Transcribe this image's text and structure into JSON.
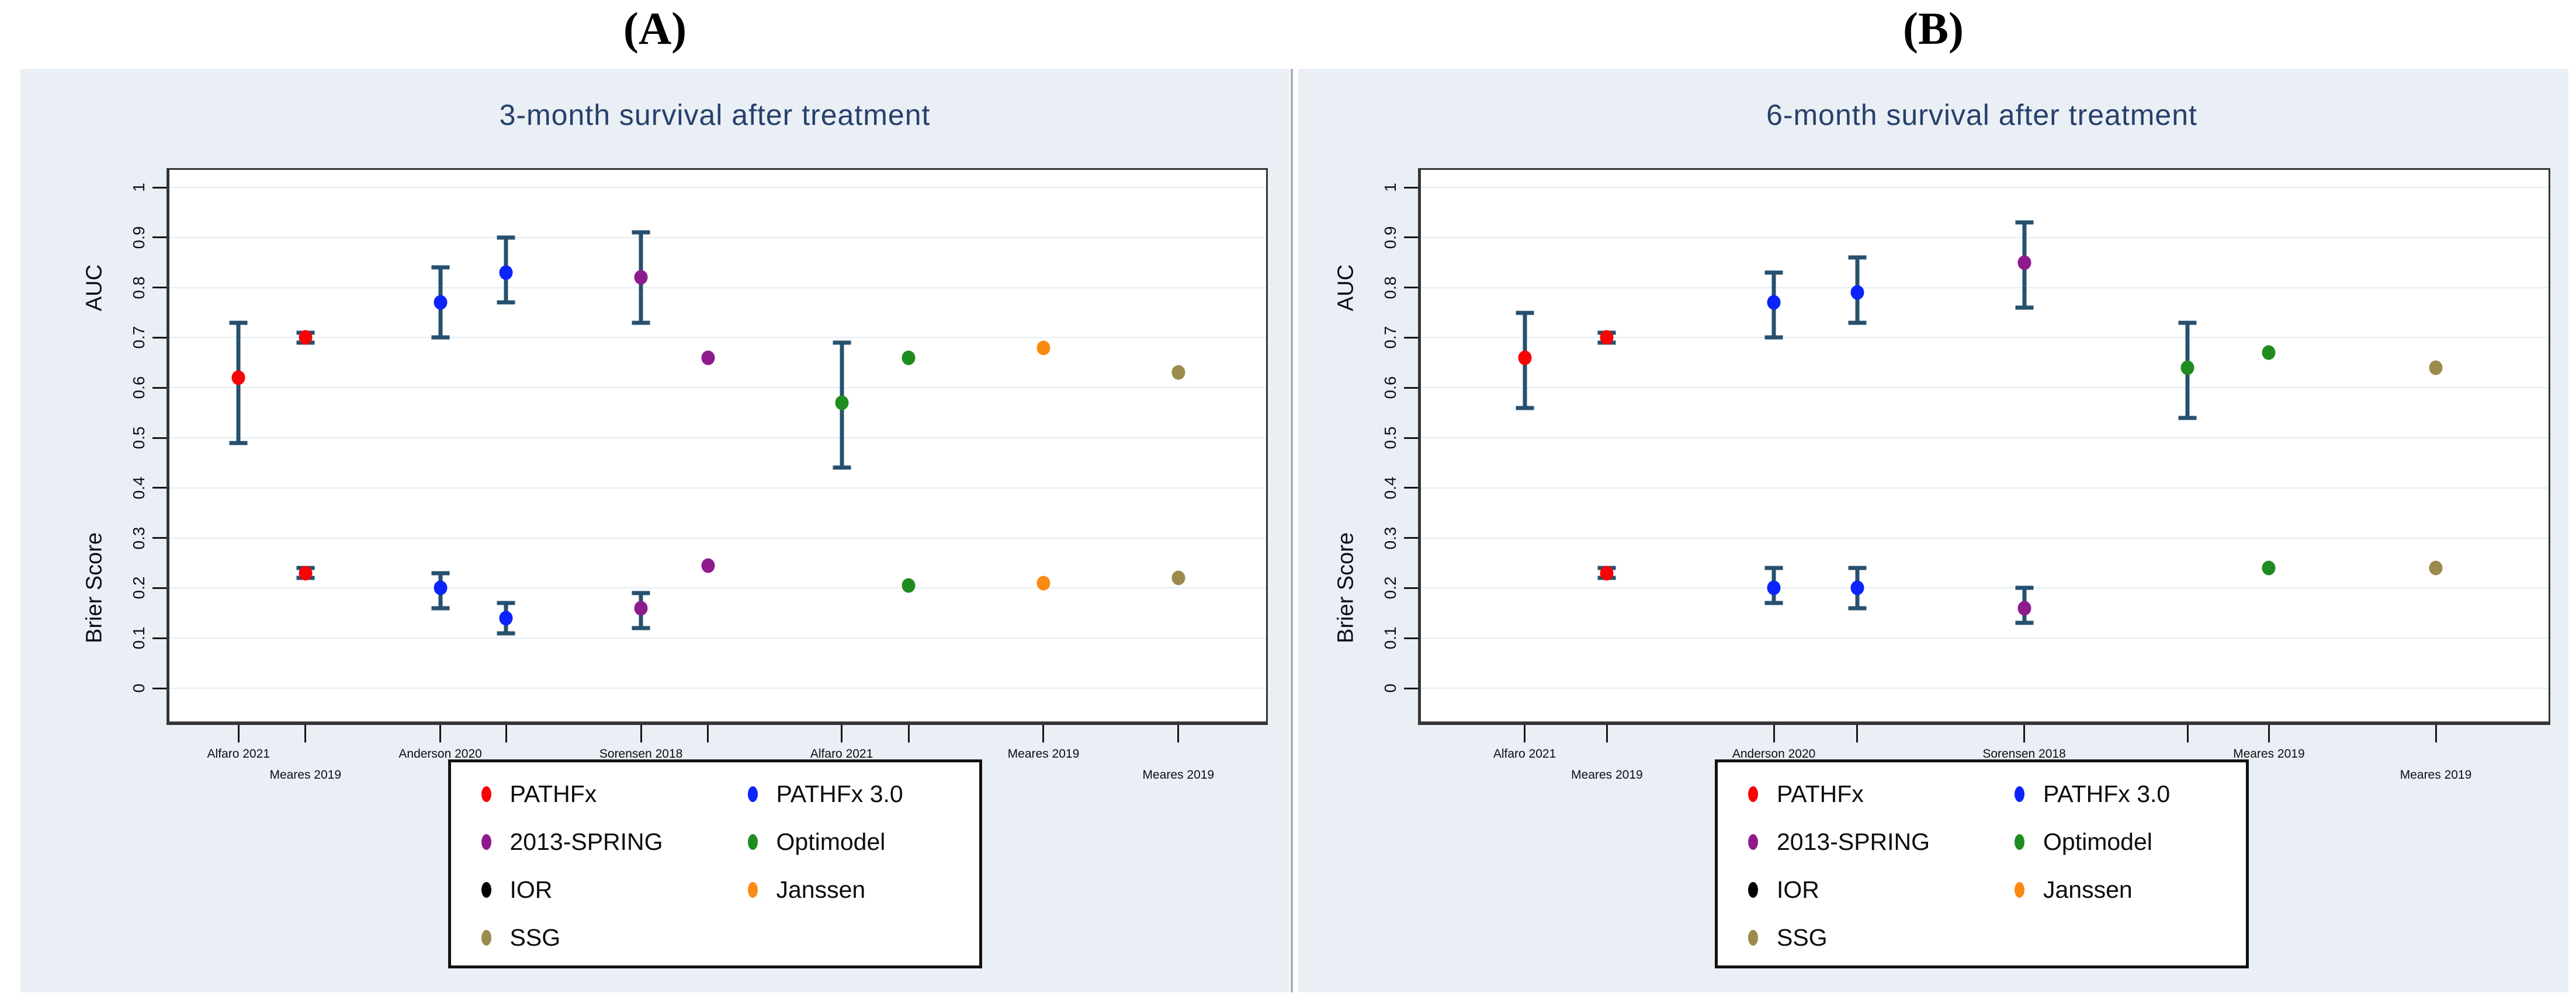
{
  "figure_labels": {
    "panel_a": "(A)",
    "panel_b": "(B)"
  },
  "colors": {
    "red": "#F50505",
    "blue": "#0B24FB",
    "purple": "#8E1B8E",
    "green": "#1E8C1E",
    "orange": "#FB8A12",
    "tan": "#9C8B4D",
    "black": "#000000",
    "error_bar": "#27506F",
    "title": "#27406B",
    "panel_background": "#E9EFF4",
    "gridline": "#E3EDF2"
  },
  "legend": {
    "items": [
      {
        "label": "PATHFx",
        "color": "red"
      },
      {
        "label": "PATHFx 3.0",
        "color": "blue"
      },
      {
        "label": "2013-SPRING",
        "color": "purple"
      },
      {
        "label": "Optimodel",
        "color": "green"
      },
      {
        "label": "IOR",
        "color": "black"
      },
      {
        "label": "Janssen",
        "color": "orange"
      },
      {
        "label": "SSG",
        "color": "tan"
      }
    ]
  },
  "chart_data": [
    {
      "type": "scatter",
      "panel": "A",
      "title": "3-month survival after treatment",
      "ylabel_top": {
        "text": "AUC",
        "center_value": 0.8
      },
      "ylabel_bottom": {
        "text": "Brier Score",
        "center_value": 0.2
      },
      "ylim": [
        0,
        1
      ],
      "grid": true,
      "legend_position": "bottom-center",
      "yticks": [
        {
          "v": 0,
          "label": "0"
        },
        {
          "v": 0.1,
          "label": "0.1"
        },
        {
          "v": 0.2,
          "label": "0.2"
        },
        {
          "v": 0.3,
          "label": "0.3"
        },
        {
          "v": 0.4,
          "label": "0.4"
        },
        {
          "v": 0.5,
          "label": "0.5"
        },
        {
          "v": 0.6,
          "label": "0.6"
        },
        {
          "v": 0.7,
          "label": "0.7"
        },
        {
          "v": 0.8,
          "label": "0.8"
        },
        {
          "v": 0.9,
          "label": "0.9"
        },
        {
          "v": 1,
          "label": "1"
        }
      ],
      "x_axis": {
        "ticks": [
          {
            "pos": 0.063,
            "label": "Alfaro 2021",
            "row": 1
          },
          {
            "pos": 0.124,
            "label": "Meares 2019",
            "row": 2
          },
          {
            "pos": 0.247,
            "label": "Anderson 2020",
            "row": 1
          },
          {
            "pos": 0.307,
            "label": "Anderson 2020",
            "row": 2
          },
          {
            "pos": 0.43,
            "label": "Sorensen 2018",
            "row": 1
          },
          {
            "pos": 0.491,
            "label": "Meares 2019",
            "row": 2
          },
          {
            "pos": 0.613,
            "label": "Alfaro 2021",
            "row": 1
          },
          {
            "pos": 0.674,
            "label": "Meares 2019",
            "row": 2
          },
          {
            "pos": 0.797,
            "label": "Meares 2019",
            "row": 1
          },
          {
            "pos": 0.92,
            "label": "Meares 2019",
            "row": 2
          }
        ]
      },
      "series": [
        {
          "name": "PATHFx",
          "color": "red",
          "points": [
            {
              "x": 0.063,
              "metric": "AUC",
              "study": "Alfaro 2021",
              "value": 0.62,
              "ci": [
                0.49,
                0.73
              ]
            },
            {
              "x": 0.124,
              "metric": "AUC",
              "study": "Meares 2019",
              "value": 0.7,
              "ci": [
                0.69,
                0.71
              ]
            },
            {
              "x": 0.124,
              "metric": "Brier Score",
              "study": "Meares 2019",
              "value": 0.23,
              "ci": [
                0.22,
                0.24
              ]
            }
          ]
        },
        {
          "name": "PATHFx 3.0",
          "color": "blue",
          "points": [
            {
              "x": 0.247,
              "metric": "AUC",
              "study": "Anderson 2020",
              "value": 0.77,
              "ci": [
                0.7,
                0.84
              ]
            },
            {
              "x": 0.307,
              "metric": "AUC",
              "study": "Anderson 2020",
              "value": 0.83,
              "ci": [
                0.77,
                0.9
              ]
            },
            {
              "x": 0.247,
              "metric": "Brier Score",
              "study": "Anderson 2020",
              "value": 0.2,
              "ci": [
                0.16,
                0.23
              ]
            },
            {
              "x": 0.307,
              "metric": "Brier Score",
              "study": "Anderson 2020",
              "value": 0.14,
              "ci": [
                0.11,
                0.17
              ]
            }
          ]
        },
        {
          "name": "2013-SPRING",
          "color": "purple",
          "points": [
            {
              "x": 0.43,
              "metric": "AUC",
              "study": "Sorensen 2018",
              "value": 0.82,
              "ci": [
                0.73,
                0.91
              ]
            },
            {
              "x": 0.491,
              "metric": "AUC",
              "study": "Meares 2019",
              "value": 0.66,
              "ci": null
            },
            {
              "x": 0.43,
              "metric": "Brier Score",
              "study": "Sorensen 2018",
              "value": 0.16,
              "ci": [
                0.12,
                0.19
              ]
            },
            {
              "x": 0.491,
              "metric": "Brier Score",
              "study": "Meares 2019",
              "value": 0.245,
              "ci": null
            }
          ]
        },
        {
          "name": "Optimodel",
          "color": "green",
          "points": [
            {
              "x": 0.613,
              "metric": "AUC",
              "study": "Alfaro 2021",
              "value": 0.57,
              "ci": [
                0.44,
                0.69
              ]
            },
            {
              "x": 0.674,
              "metric": "AUC",
              "study": "Meares 2019",
              "value": 0.66,
              "ci": null
            },
            {
              "x": 0.674,
              "metric": "Brier Score",
              "study": "Meares 2019",
              "value": 0.205,
              "ci": null
            }
          ]
        },
        {
          "name": "Janssen",
          "color": "orange",
          "points": [
            {
              "x": 0.797,
              "metric": "AUC",
              "study": "Meares 2019",
              "value": 0.68,
              "ci": null
            },
            {
              "x": 0.797,
              "metric": "Brier Score",
              "study": "Meares 2019",
              "value": 0.21,
              "ci": null
            }
          ]
        },
        {
          "name": "SSG",
          "color": "tan",
          "points": [
            {
              "x": 0.92,
              "metric": "AUC",
              "study": "Meares 2019",
              "value": 0.63,
              "ci": null
            },
            {
              "x": 0.92,
              "metric": "Brier Score",
              "study": "Meares 2019",
              "value": 0.22,
              "ci": null
            }
          ]
        }
      ]
    },
    {
      "type": "scatter",
      "panel": "B",
      "title": "6-month survival after treatment",
      "ylabel_top": {
        "text": "AUC",
        "center_value": 0.8
      },
      "ylabel_bottom": {
        "text": "Brier Score",
        "center_value": 0.2
      },
      "ylim": [
        0,
        1
      ],
      "grid": true,
      "legend_position": "bottom-center",
      "yticks": [
        {
          "v": 0,
          "label": "0"
        },
        {
          "v": 0.1,
          "label": "0.1"
        },
        {
          "v": 0.2,
          "label": "0.2"
        },
        {
          "v": 0.3,
          "label": "0.3"
        },
        {
          "v": 0.4,
          "label": "0.4"
        },
        {
          "v": 0.5,
          "label": "0.5"
        },
        {
          "v": 0.6,
          "label": "0.6"
        },
        {
          "v": 0.7,
          "label": "0.7"
        },
        {
          "v": 0.8,
          "label": "0.8"
        },
        {
          "v": 0.9,
          "label": "0.9"
        },
        {
          "v": 1,
          "label": "1"
        }
      ],
      "x_axis": {
        "ticks": [
          {
            "pos": 0.092,
            "label": "Alfaro 2021",
            "row": 1
          },
          {
            "pos": 0.165,
            "label": "Meares 2019",
            "row": 2
          },
          {
            "pos": 0.313,
            "label": "Anderson 2020",
            "row": 1
          },
          {
            "pos": 0.387,
            "label": "Anderson 2020",
            "row": 2
          },
          {
            "pos": 0.535,
            "label": "Sorensen 2018",
            "row": 1
          },
          {
            "pos": 0.68,
            "label": "Alfaro 2021",
            "row": 2
          },
          {
            "pos": 0.752,
            "label": "Meares 2019",
            "row": 1
          },
          {
            "pos": 0.9,
            "label": "Meares 2019",
            "row": 2
          }
        ]
      },
      "series": [
        {
          "name": "PATHFx",
          "color": "red",
          "points": [
            {
              "x": 0.092,
              "metric": "AUC",
              "study": "Alfaro 2021",
              "value": 0.66,
              "ci": [
                0.56,
                0.75
              ]
            },
            {
              "x": 0.165,
              "metric": "AUC",
              "study": "Meares 2019",
              "value": 0.7,
              "ci": [
                0.69,
                0.71
              ]
            },
            {
              "x": 0.165,
              "metric": "Brier Score",
              "study": "Meares 2019",
              "value": 0.23,
              "ci": [
                0.22,
                0.24
              ]
            }
          ]
        },
        {
          "name": "PATHFx 3.0",
          "color": "blue",
          "points": [
            {
              "x": 0.313,
              "metric": "AUC",
              "study": "Anderson 2020",
              "value": 0.77,
              "ci": [
                0.7,
                0.83
              ]
            },
            {
              "x": 0.387,
              "metric": "AUC",
              "study": "Anderson 2020",
              "value": 0.79,
              "ci": [
                0.73,
                0.86
              ]
            },
            {
              "x": 0.313,
              "metric": "Brier Score",
              "study": "Anderson 2020",
              "value": 0.2,
              "ci": [
                0.17,
                0.24
              ]
            },
            {
              "x": 0.387,
              "metric": "Brier Score",
              "study": "Anderson 2020",
              "value": 0.2,
              "ci": [
                0.16,
                0.24
              ]
            }
          ]
        },
        {
          "name": "2013-SPRING",
          "color": "purple",
          "points": [
            {
              "x": 0.535,
              "metric": "AUC",
              "study": "Sorensen 2018",
              "value": 0.85,
              "ci": [
                0.76,
                0.93
              ]
            },
            {
              "x": 0.535,
              "metric": "Brier Score",
              "study": "Sorensen 2018",
              "value": 0.16,
              "ci": [
                0.13,
                0.2
              ]
            }
          ]
        },
        {
          "name": "Optimodel",
          "color": "green",
          "points": [
            {
              "x": 0.68,
              "metric": "AUC",
              "study": "Alfaro 2021",
              "value": 0.64,
              "ci": [
                0.54,
                0.73
              ]
            },
            {
              "x": 0.752,
              "metric": "AUC",
              "study": "Meares 2019",
              "value": 0.67,
              "ci": null
            },
            {
              "x": 0.752,
              "metric": "Brier Score",
              "study": "Meares 2019",
              "value": 0.24,
              "ci": null
            }
          ]
        },
        {
          "name": "SSG",
          "color": "tan",
          "points": [
            {
              "x": 0.9,
              "metric": "AUC",
              "study": "Meares 2019",
              "value": 0.64,
              "ci": null
            },
            {
              "x": 0.9,
              "metric": "Brier Score",
              "study": "Meares 2019",
              "value": 0.24,
              "ci": null
            }
          ]
        }
      ]
    }
  ]
}
